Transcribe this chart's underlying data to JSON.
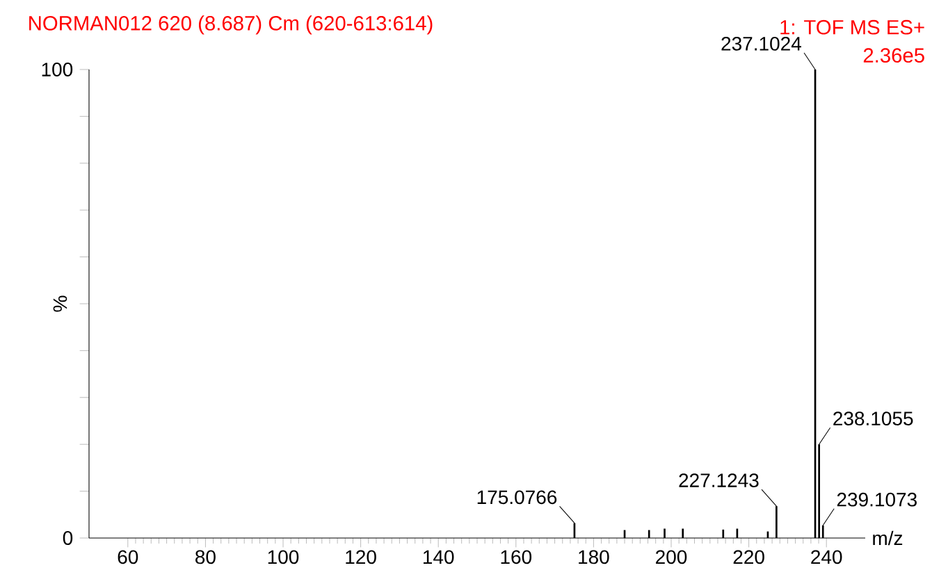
{
  "chart_data": {
    "type": "bar",
    "title": "NORMAN012 620 (8.687) Cm (620-613:614)",
    "xlabel": "m/z",
    "ylabel": "%",
    "color": "#000000",
    "x": [
      175.0766,
      188.0,
      194.3,
      198.3,
      203.0,
      213.4,
      217.0,
      224.9,
      227.1243,
      237.1024,
      238.1055,
      239.1073
    ],
    "values": [
      3.2,
      1.7,
      1.7,
      2.0,
      2.0,
      1.8,
      2.0,
      1.4,
      6.8,
      100,
      20,
      2.7
    ],
    "xlim": [
      50,
      250
    ],
    "ylim": [
      0,
      100
    ],
    "xticks": [
      60,
      80,
      100,
      120,
      140,
      160,
      180,
      200,
      220,
      240
    ],
    "yticks": [
      0,
      {
        "value": 10,
        "label": null
      },
      {
        "value": 20,
        "label": null
      },
      {
        "value": 30,
        "label": null
      },
      {
        "value": 40,
        "label": null
      },
      {
        "value": 50,
        "label": null
      },
      {
        "value": 60,
        "label": null
      },
      {
        "value": 70,
        "label": null
      },
      {
        "value": 80,
        "label": null
      },
      {
        "value": 90,
        "label": null
      },
      100
    ],
    "annotations": [
      "1: TOF MS ES+",
      "2.36e5",
      {
        "text": "175.0766",
        "x": 175.0766,
        "y": 3.2
      },
      {
        "text": "227.1243",
        "x": 227.1243,
        "y": 6.8
      },
      {
        "text": "237.1024",
        "x": 237.1024,
        "y": 100
      },
      {
        "text": "238.1055",
        "x": 238.1055,
        "y": 20
      },
      {
        "text": "239.1073",
        "x": 239.1073,
        "y": 2.7
      }
    ]
  }
}
